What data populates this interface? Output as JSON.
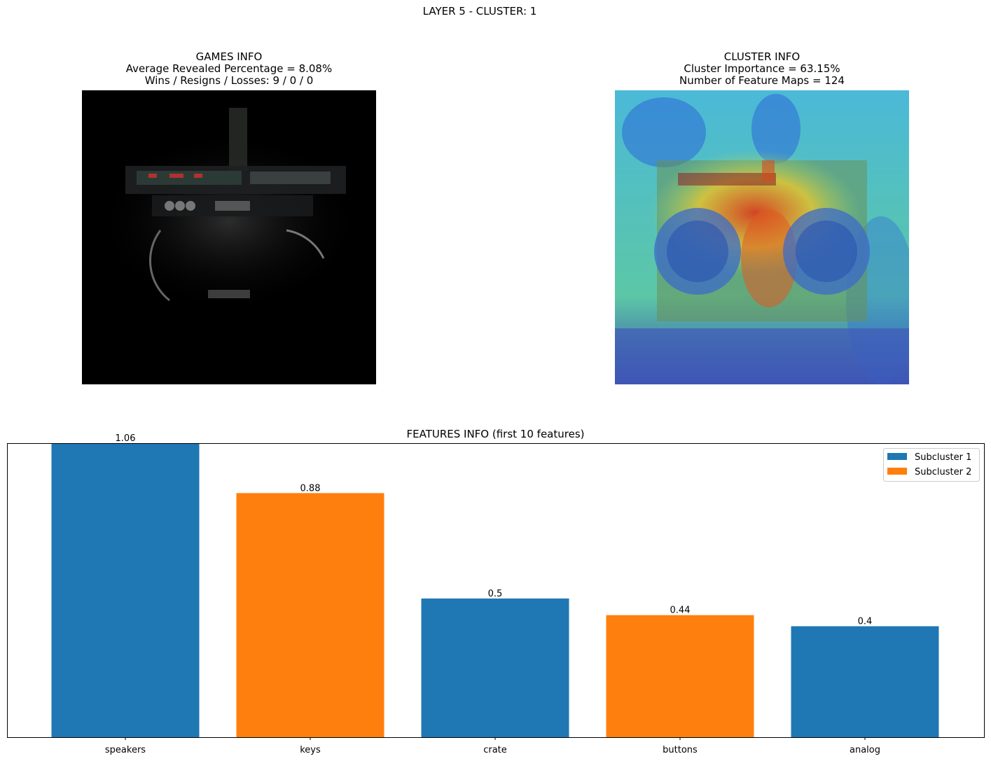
{
  "suptitle": "LAYER 5 - CLUSTER: 1",
  "games_info": {
    "title": "GAMES INFO",
    "line1": "Average Revealed Percentage = 8.08%",
    "line2": "Wins / Resigns / Losses: 9 / 0 / 0"
  },
  "cluster_info": {
    "title": "CLUSTER INFO",
    "line1": "Cluster Importance = 63.15%",
    "line2": "Number of Feature Maps = 124"
  },
  "colors": {
    "subcluster_1": "#1f77b4",
    "subcluster_2": "#ff7f0e"
  },
  "chart_data": {
    "type": "bar",
    "title": "FEATURES INFO (first 10 features)",
    "categories": [
      "speakers",
      "keys",
      "crate",
      "buttons",
      "analog"
    ],
    "values": [
      1.06,
      0.88,
      0.5,
      0.44,
      0.4
    ],
    "value_labels": [
      "1.06",
      "0.88",
      "0.5",
      "0.44",
      "0.4"
    ],
    "subcluster": [
      1,
      2,
      1,
      2,
      1
    ],
    "legend": {
      "position": "top-right",
      "entries": [
        "Subcluster 1",
        "Subcluster 2"
      ]
    },
    "ylim": [
      0,
      1.06
    ],
    "y_axis_visible": false,
    "grid": false
  }
}
